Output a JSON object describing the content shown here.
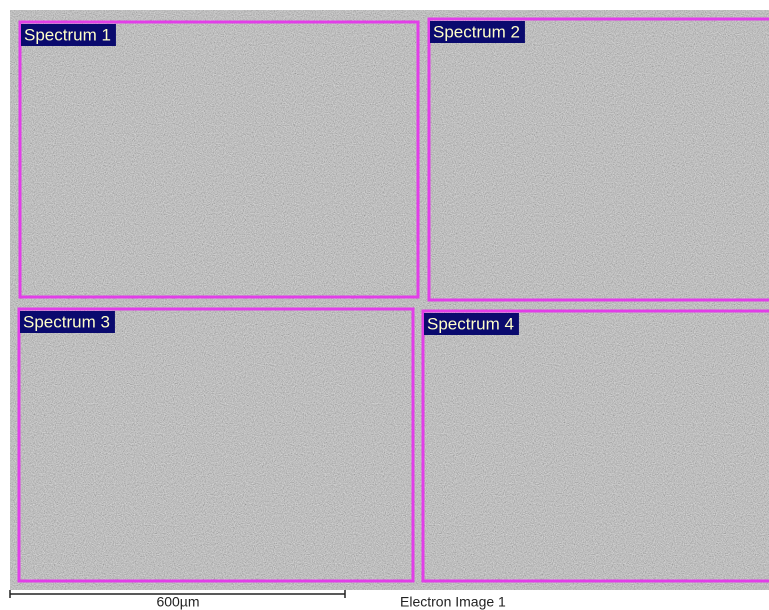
{
  "image": {
    "regions": [
      {
        "label": "Spectrum 1"
      },
      {
        "label": "Spectrum 2"
      },
      {
        "label": "Spectrum 3"
      },
      {
        "label": "Spectrum 4"
      }
    ],
    "scale_bar": {
      "label": "600µm"
    },
    "caption": "Electron Image 1"
  }
}
